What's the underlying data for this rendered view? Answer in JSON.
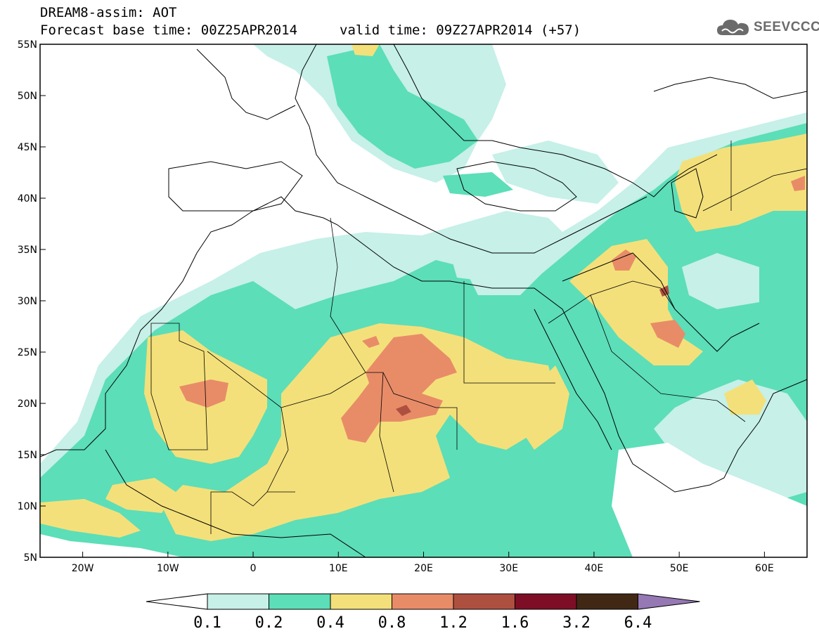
{
  "header": {
    "title_line1": "DREAM8-assim: AOT",
    "title_line2": "Forecast base time: 00Z25APR2014",
    "valid_time": "valid time: 09Z27APR2014 (+57)",
    "logo_text": "SEEVCCC"
  },
  "axes": {
    "lat_labels": [
      "55N",
      "50N",
      "45N",
      "40N",
      "35N",
      "30N",
      "25N",
      "20N",
      "15N",
      "10N",
      "5N"
    ],
    "lon_labels": [
      "20W",
      "10W",
      "0",
      "10E",
      "20E",
      "30E",
      "40E",
      "50E",
      "60E"
    ]
  },
  "colorbar": {
    "colors": [
      "#ffffff",
      "#c6f0e8",
      "#5cdeb8",
      "#f4e07a",
      "#e88c68",
      "#ae5040",
      "#7e0e26",
      "#402814",
      "#9678b4"
    ],
    "labels": [
      "0.1",
      "0.2",
      "0.4",
      "0.8",
      "1.2",
      "1.6",
      "3.2",
      "6.4"
    ]
  },
  "map_data": {
    "field": "Aerosol Optical Thickness",
    "extent": {
      "lon_min": -25,
      "lon_max": 65,
      "lat_min": 5,
      "lat_max": 55
    }
  }
}
